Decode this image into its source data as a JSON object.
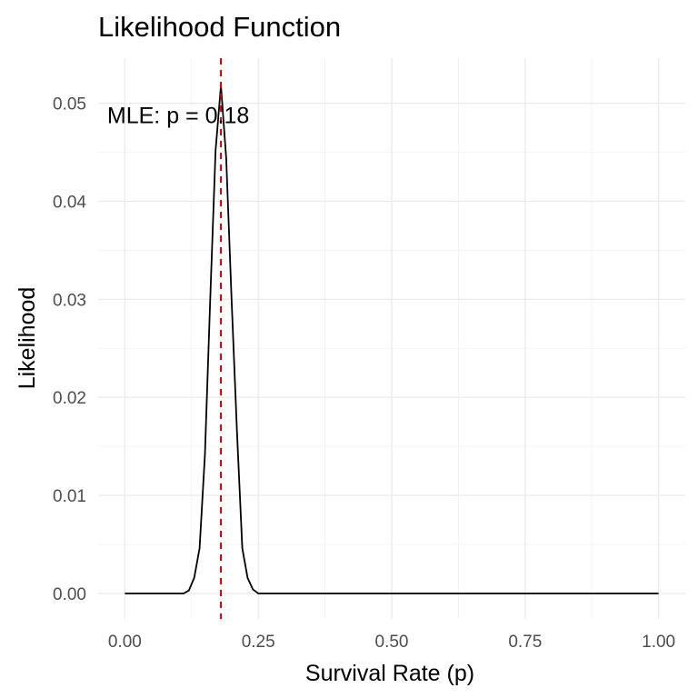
{
  "chart_data": {
    "type": "line",
    "title": "Likelihood Function",
    "xlabel": "Survival Rate (p)",
    "ylabel": "Likelihood",
    "xlim": [
      -0.05,
      1.05
    ],
    "ylim": [
      -0.0026,
      0.0546
    ],
    "x_ticks": [
      0.0,
      0.25,
      0.5,
      0.75,
      1.0
    ],
    "x_tick_labels": [
      "0.00",
      "0.25",
      "0.50",
      "0.75",
      "1.00"
    ],
    "y_ticks": [
      0.0,
      0.01,
      0.02,
      0.03,
      0.04,
      0.05
    ],
    "y_tick_labels": [
      "0.00",
      "0.01",
      "0.02",
      "0.03",
      "0.04",
      "0.05"
    ],
    "grid": true,
    "series": [
      {
        "x": [
          0.0,
          0.1,
          0.11,
          0.12,
          0.13,
          0.14,
          0.15,
          0.16,
          0.17,
          0.18,
          0.19,
          0.2,
          0.21,
          0.22,
          0.23,
          0.24,
          0.25,
          0.26,
          0.27,
          1.0
        ],
        "y": [
          0.0,
          0.0,
          0.0,
          0.0003,
          0.0016,
          0.0046,
          0.0142,
          0.03,
          0.0452,
          0.0518,
          0.0444,
          0.03,
          0.0166,
          0.0046,
          0.0016,
          0.0004,
          0.0,
          0.0,
          0.0,
          0.0
        ]
      }
    ],
    "vline": {
      "x": 0.18,
      "color": "#cc0000",
      "style": "dashed"
    },
    "annotation": {
      "text": "MLE: p = 0.18",
      "x": 0.1,
      "y": 0.0488
    }
  }
}
